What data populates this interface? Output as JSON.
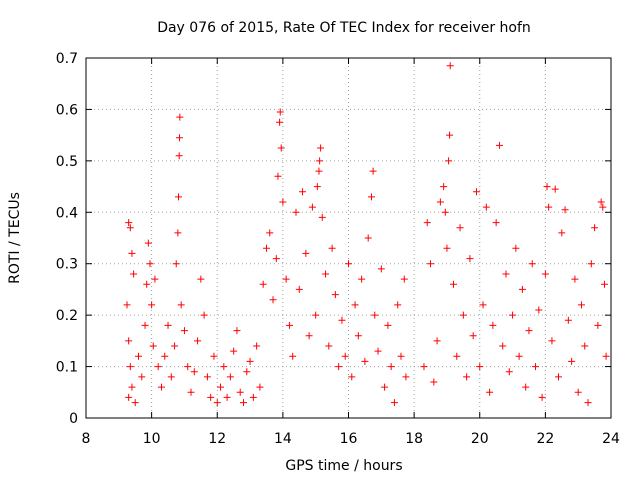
{
  "chart_data": {
    "type": "scatter",
    "title": "Day 076 of 2015, Rate Of TEC Index for receiver hofn",
    "xlabel": "GPS time / hours",
    "ylabel": "ROTI / TECUs",
    "xlim": [
      8,
      24
    ],
    "ylim": [
      0,
      0.7
    ],
    "xticks": [
      8,
      10,
      12,
      14,
      16,
      18,
      20,
      22,
      24
    ],
    "xtick_labels": [
      "8",
      "10",
      "12",
      "14",
      "16",
      "18",
      "20",
      "22",
      "24"
    ],
    "yticks": [
      0,
      0.1,
      0.2,
      0.3,
      0.4,
      0.5,
      0.6,
      0.7
    ],
    "ytick_labels": [
      "0",
      "0.1",
      "0.2",
      "0.3",
      "0.4",
      "0.5",
      "0.6",
      "0.7"
    ],
    "grid": true,
    "marker": "+",
    "color": "#ff0000",
    "series": [
      {
        "name": "ROTI",
        "points": [
          [
            9.3,
            0.38
          ],
          [
            9.35,
            0.37
          ],
          [
            9.4,
            0.32
          ],
          [
            9.45,
            0.28
          ],
          [
            9.25,
            0.22
          ],
          [
            9.3,
            0.15
          ],
          [
            9.35,
            0.1
          ],
          [
            9.4,
            0.06
          ],
          [
            9.3,
            0.04
          ],
          [
            9.5,
            0.03
          ],
          [
            9.6,
            0.12
          ],
          [
            9.7,
            0.08
          ],
          [
            9.8,
            0.18
          ],
          [
            9.85,
            0.26
          ],
          [
            9.9,
            0.34
          ],
          [
            9.95,
            0.3
          ],
          [
            10.0,
            0.22
          ],
          [
            10.05,
            0.14
          ],
          [
            10.1,
            0.27
          ],
          [
            10.2,
            0.1
          ],
          [
            10.3,
            0.06
          ],
          [
            10.4,
            0.12
          ],
          [
            10.5,
            0.18
          ],
          [
            10.6,
            0.08
          ],
          [
            10.7,
            0.14
          ],
          [
            10.75,
            0.3
          ],
          [
            10.8,
            0.36
          ],
          [
            10.82,
            0.43
          ],
          [
            10.84,
            0.51
          ],
          [
            10.85,
            0.545
          ],
          [
            10.86,
            0.585
          ],
          [
            10.9,
            0.22
          ],
          [
            11.0,
            0.17
          ],
          [
            11.1,
            0.1
          ],
          [
            11.2,
            0.05
          ],
          [
            11.3,
            0.09
          ],
          [
            11.4,
            0.15
          ],
          [
            11.5,
            0.27
          ],
          [
            11.6,
            0.2
          ],
          [
            11.7,
            0.08
          ],
          [
            11.8,
            0.04
          ],
          [
            11.9,
            0.12
          ],
          [
            12.0,
            0.03
          ],
          [
            12.1,
            0.06
          ],
          [
            12.2,
            0.1
          ],
          [
            12.3,
            0.04
          ],
          [
            12.4,
            0.08
          ],
          [
            12.5,
            0.13
          ],
          [
            12.6,
            0.17
          ],
          [
            12.7,
            0.05
          ],
          [
            12.8,
            0.03
          ],
          [
            12.9,
            0.09
          ],
          [
            13.0,
            0.11
          ],
          [
            13.1,
            0.04
          ],
          [
            13.2,
            0.14
          ],
          [
            13.3,
            0.06
          ],
          [
            13.4,
            0.26
          ],
          [
            13.5,
            0.33
          ],
          [
            13.6,
            0.36
          ],
          [
            13.7,
            0.23
          ],
          [
            13.8,
            0.31
          ],
          [
            13.85,
            0.47
          ],
          [
            13.9,
            0.575
          ],
          [
            13.92,
            0.595
          ],
          [
            13.95,
            0.525
          ],
          [
            14.0,
            0.42
          ],
          [
            14.1,
            0.27
          ],
          [
            14.2,
            0.18
          ],
          [
            14.3,
            0.12
          ],
          [
            14.4,
            0.4
          ],
          [
            14.5,
            0.25
          ],
          [
            14.6,
            0.44
          ],
          [
            14.7,
            0.32
          ],
          [
            14.8,
            0.16
          ],
          [
            14.9,
            0.41
          ],
          [
            15.0,
            0.2
          ],
          [
            15.05,
            0.45
          ],
          [
            15.1,
            0.48
          ],
          [
            15.12,
            0.5
          ],
          [
            15.15,
            0.525
          ],
          [
            15.2,
            0.39
          ],
          [
            15.3,
            0.28
          ],
          [
            15.4,
            0.14
          ],
          [
            15.5,
            0.33
          ],
          [
            15.6,
            0.24
          ],
          [
            15.7,
            0.1
          ],
          [
            15.8,
            0.19
          ],
          [
            15.9,
            0.12
          ],
          [
            16.0,
            0.3
          ],
          [
            16.1,
            0.08
          ],
          [
            16.2,
            0.22
          ],
          [
            16.3,
            0.16
          ],
          [
            16.4,
            0.27
          ],
          [
            16.5,
            0.11
          ],
          [
            16.6,
            0.35
          ],
          [
            16.7,
            0.43
          ],
          [
            16.75,
            0.48
          ],
          [
            16.8,
            0.2
          ],
          [
            16.9,
            0.13
          ],
          [
            17.0,
            0.29
          ],
          [
            17.1,
            0.06
          ],
          [
            17.2,
            0.18
          ],
          [
            17.3,
            0.1
          ],
          [
            17.4,
            0.03
          ],
          [
            17.5,
            0.22
          ],
          [
            17.6,
            0.12
          ],
          [
            17.7,
            0.27
          ],
          [
            17.75,
            0.08
          ],
          [
            18.3,
            0.1
          ],
          [
            18.4,
            0.38
          ],
          [
            18.5,
            0.3
          ],
          [
            18.6,
            0.07
          ],
          [
            18.7,
            0.15
          ],
          [
            18.8,
            0.42
          ],
          [
            18.9,
            0.45
          ],
          [
            18.95,
            0.4
          ],
          [
            19.0,
            0.33
          ],
          [
            19.05,
            0.5
          ],
          [
            19.08,
            0.55
          ],
          [
            19.1,
            0.685
          ],
          [
            19.2,
            0.26
          ],
          [
            19.3,
            0.12
          ],
          [
            19.4,
            0.37
          ],
          [
            19.5,
            0.2
          ],
          [
            19.6,
            0.08
          ],
          [
            19.7,
            0.31
          ],
          [
            19.8,
            0.16
          ],
          [
            19.9,
            0.44
          ],
          [
            20.0,
            0.1
          ],
          [
            20.1,
            0.22
          ],
          [
            20.2,
            0.41
          ],
          [
            20.3,
            0.05
          ],
          [
            20.4,
            0.18
          ],
          [
            20.5,
            0.38
          ],
          [
            20.6,
            0.53
          ],
          [
            20.7,
            0.14
          ],
          [
            20.8,
            0.28
          ],
          [
            20.9,
            0.09
          ],
          [
            21.0,
            0.2
          ],
          [
            21.1,
            0.33
          ],
          [
            21.2,
            0.12
          ],
          [
            21.3,
            0.25
          ],
          [
            21.4,
            0.06
          ],
          [
            21.5,
            0.17
          ],
          [
            21.6,
            0.3
          ],
          [
            21.7,
            0.1
          ],
          [
            21.8,
            0.21
          ],
          [
            21.9,
            0.04
          ],
          [
            22.0,
            0.28
          ],
          [
            22.05,
            0.45
          ],
          [
            22.1,
            0.41
          ],
          [
            22.2,
            0.15
          ],
          [
            22.3,
            0.445
          ],
          [
            22.4,
            0.08
          ],
          [
            22.5,
            0.36
          ],
          [
            22.6,
            0.405
          ],
          [
            22.7,
            0.19
          ],
          [
            22.8,
            0.11
          ],
          [
            22.9,
            0.27
          ],
          [
            23.0,
            0.05
          ],
          [
            23.1,
            0.22
          ],
          [
            23.2,
            0.14
          ],
          [
            23.3,
            0.03
          ],
          [
            23.4,
            0.3
          ],
          [
            23.5,
            0.37
          ],
          [
            23.6,
            0.18
          ],
          [
            23.7,
            0.42
          ],
          [
            23.75,
            0.41
          ],
          [
            23.8,
            0.26
          ],
          [
            23.85,
            0.12
          ]
        ]
      }
    ]
  }
}
